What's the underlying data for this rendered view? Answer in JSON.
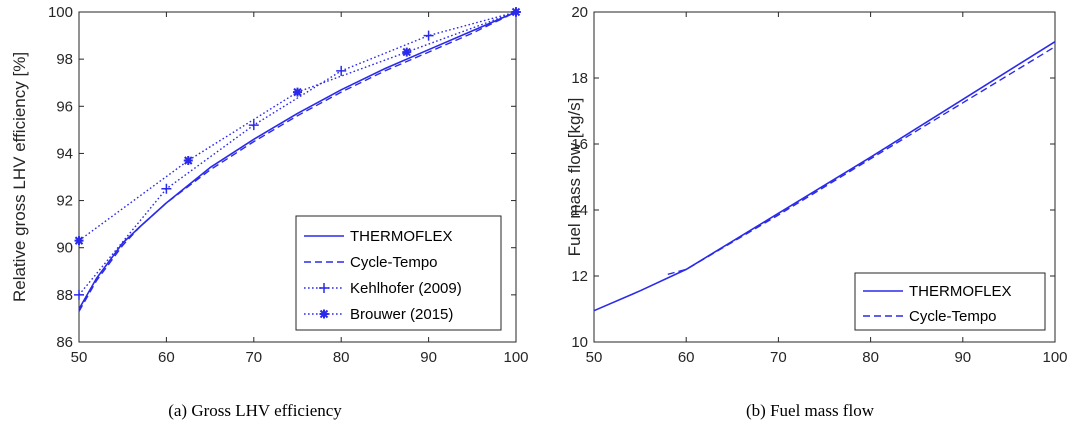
{
  "chart_data": [
    {
      "type": "line",
      "caption": "(a) Gross LHV efficiency",
      "xlabel": "",
      "ylabel": "Relative gross LHV efficiency [%]",
      "xlim": [
        50,
        100
      ],
      "ylim": [
        86,
        100
      ],
      "xticks": [
        "50",
        "60",
        "70",
        "80",
        "90",
        "100"
      ],
      "yticks": [
        "86",
        "88",
        "90",
        "92",
        "94",
        "96",
        "98",
        "100"
      ],
      "grid": false,
      "legend_position": "bottom-right",
      "series": [
        {
          "name": "THERMOFLEX",
          "style": "solid",
          "marker": "none",
          "x": [
            50,
            52,
            55,
            57,
            60,
            65,
            70,
            75,
            80,
            85,
            90,
            95,
            100
          ],
          "y": [
            87.4,
            88.7,
            90.2,
            90.9,
            91.9,
            93.4,
            94.6,
            95.7,
            96.7,
            97.6,
            98.4,
            99.2,
            100
          ]
        },
        {
          "name": "Cycle-Tempo",
          "style": "dashed",
          "marker": "none",
          "x": [
            50,
            52,
            55,
            57,
            60,
            65,
            70,
            75,
            80,
            85,
            90,
            95,
            100
          ],
          "y": [
            87.3,
            88.6,
            90.1,
            90.9,
            91.9,
            93.3,
            94.5,
            95.6,
            96.6,
            97.5,
            98.3,
            99.1,
            100
          ]
        },
        {
          "name": "Kehlhofer (2009)",
          "style": "dotted",
          "marker": "plus",
          "x": [
            50,
            60,
            70,
            80,
            90,
            100
          ],
          "y": [
            88.0,
            92.5,
            95.2,
            97.5,
            99.0,
            100
          ]
        },
        {
          "name": "Brouwer (2015)",
          "style": "dotted",
          "marker": "star",
          "x": [
            50,
            62.5,
            75,
            87.5,
            100
          ],
          "y": [
            90.3,
            93.7,
            96.6,
            98.3,
            100
          ]
        }
      ]
    },
    {
      "type": "line",
      "caption": "(b) Fuel mass flow",
      "xlabel": "",
      "ylabel": "Fuel mass flow [kg/s]",
      "xlim": [
        50,
        100
      ],
      "ylim": [
        10,
        20
      ],
      "xticks": [
        "50",
        "60",
        "70",
        "80",
        "90",
        "100"
      ],
      "yticks": [
        "10",
        "12",
        "14",
        "16",
        "18",
        "20"
      ],
      "grid": false,
      "legend_position": "bottom-right",
      "series": [
        {
          "name": "THERMOFLEX",
          "style": "solid",
          "marker": "none",
          "x": [
            50,
            55,
            60,
            70,
            80,
            90,
            100
          ],
          "y": [
            10.95,
            11.55,
            12.2,
            13.9,
            15.6,
            17.35,
            19.1
          ]
        },
        {
          "name": "Cycle-Tempo",
          "style": "dashed",
          "marker": "none",
          "x": [
            58,
            60,
            70,
            80,
            90,
            100
          ],
          "y": [
            12.05,
            12.2,
            13.85,
            15.55,
            17.25,
            18.95
          ]
        }
      ]
    }
  ],
  "colors": {
    "series": "#2a2aeb",
    "axis": "#262626"
  }
}
